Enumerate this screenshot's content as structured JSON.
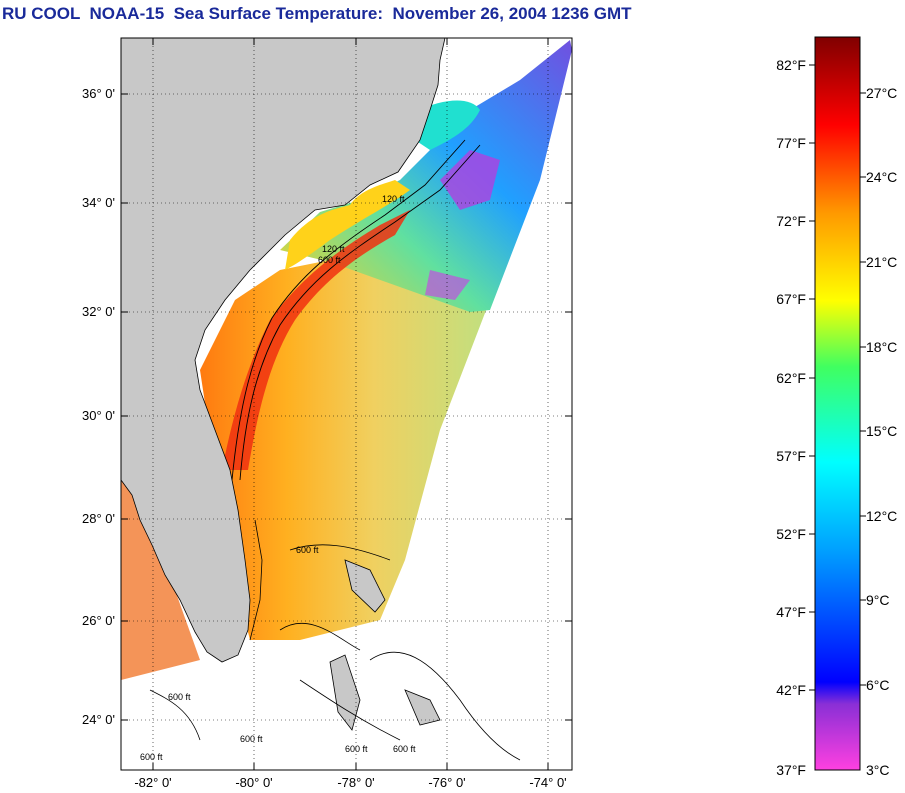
{
  "title": "RU COOL  NOAA-15  Sea Surface Temperature:  November 26, 2004 1236 GMT",
  "map": {
    "lat_labels": [
      "36° 0'",
      "34° 0'",
      "32° 0'",
      "30° 0'",
      "28° 0'",
      "26° 0'",
      "24° 0'"
    ],
    "lon_labels": [
      "-82° 0'",
      "-80° 0'",
      "-78° 0'",
      "-76° 0'",
      "-74° 0'"
    ],
    "land_color": "#c8c8c8",
    "isobath_labels": [
      "120 ft",
      "600 ft",
      "120 ft",
      "600 ft",
      "600 ft",
      "600 ft",
      "600 ft",
      "600 ft",
      "600 ft"
    ]
  },
  "colorbar": {
    "fahrenheit_labels": [
      "82°F",
      "77°F",
      "72°F",
      "67°F",
      "62°F",
      "57°F",
      "52°F",
      "47°F",
      "42°F",
      "37°F"
    ],
    "celsius_labels": [
      "27°C",
      "24°C",
      "21°C",
      "18°C",
      "15°C",
      "12°C",
      "9°C",
      "6°C",
      "3°C"
    ]
  }
}
